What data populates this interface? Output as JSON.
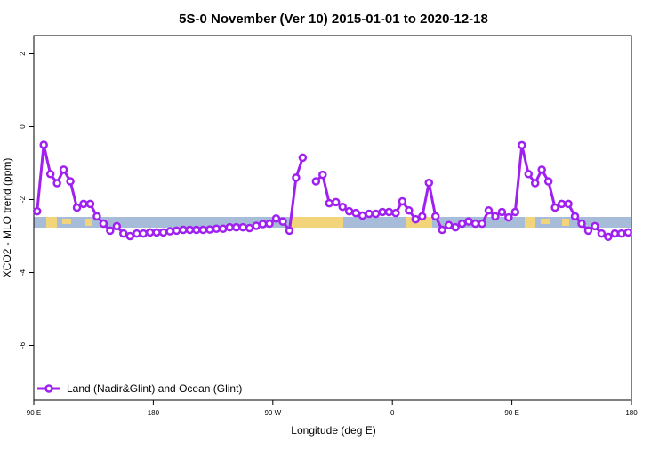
{
  "chart_data": {
    "type": "line",
    "title": "5S-0 November (Ver 10)   2015-01-01 to 2020-12-18",
    "x_label": "Longitude (deg E)",
    "y_label": "XCO2 - MLO trend (ppm)",
    "xlim": [
      90,
      540
    ],
    "ylim": [
      -7.5,
      2.5
    ],
    "xticks": [
      {
        "value": 90,
        "label": "90 E"
      },
      180,
      {
        "value": 270,
        "label": "90 W"
      },
      {
        "value": 360,
        "label": "0"
      },
      {
        "value": 450,
        "label": "90 E"
      },
      {
        "value": 540,
        "label": "180"
      }
    ],
    "yticks": [
      -6,
      -4,
      -2,
      0,
      2
    ],
    "legend": "bottom-left",
    "x": [
      92.5,
      97.5,
      102.5,
      107.5,
      112.5,
      117.5,
      122.5,
      127.5,
      132.5,
      137.5,
      142.5,
      147.5,
      152.5,
      157.5,
      162.5,
      167.5,
      172.5,
      177.5,
      182.5,
      187.5,
      192.5,
      197.5,
      202.5,
      207.5,
      212.5,
      217.5,
      222.5,
      227.5,
      232.5,
      237.5,
      242.5,
      247.5,
      252.5,
      257.5,
      262.5,
      267.5,
      272.5,
      277.5,
      282.5,
      287.5,
      292.5,
      297.5,
      302.5,
      307.5,
      312.5,
      317.5,
      322.5,
      327.5,
      332.5,
      337.5,
      342.5,
      347.5,
      352.5,
      357.5,
      362.5,
      367.5,
      372.5,
      377.5,
      382.5,
      387.5,
      392.5,
      397.5,
      402.5,
      407.5,
      412.5,
      417.5,
      422.5,
      427.5,
      432.5,
      437.5,
      442.5,
      447.5,
      452.5,
      457.5,
      462.5,
      467.5,
      472.5,
      477.5,
      482.5,
      487.5,
      492.5,
      497.5,
      502.5,
      507.5,
      512.5,
      517.5,
      522.5,
      527.5,
      532.5,
      537.5
    ],
    "series": [
      {
        "name": "Land (Nadir&Glint) and Ocean (Glint)",
        "color": "#a020f0",
        "values": [
          -2.32,
          -0.5,
          -1.3,
          -1.55,
          -1.18,
          -1.5,
          -2.22,
          -2.12,
          -2.12,
          -2.46,
          -2.66,
          -2.85,
          -2.73,
          -2.93,
          -3.0,
          -2.93,
          -2.93,
          -2.9,
          -2.9,
          -2.9,
          -2.87,
          -2.85,
          -2.83,
          -2.83,
          -2.83,
          -2.83,
          -2.82,
          -2.8,
          -2.8,
          -2.76,
          -2.76,
          -2.76,
          -2.78,
          -2.72,
          -2.67,
          -2.66,
          -2.52,
          -2.6,
          -2.85,
          -1.4,
          -0.85,
          null,
          -1.5,
          -1.32,
          -2.1,
          -2.07,
          -2.2,
          -2.32,
          -2.37,
          -2.44,
          -2.39,
          -2.39,
          -2.34,
          -2.34,
          -2.37,
          -2.05,
          -2.3,
          -2.54,
          -2.46,
          -1.54,
          -2.46,
          -2.83,
          -2.7,
          -2.76,
          -2.66,
          -2.6,
          -2.66,
          -2.66,
          -2.3,
          -2.46,
          -2.34,
          -2.49,
          -2.34,
          -0.51,
          -1.3,
          -1.55,
          -1.18,
          -1.5,
          -2.22,
          -2.12,
          -2.12,
          -2.46,
          -2.66,
          -2.85,
          -2.73,
          -2.93,
          -3.02,
          -2.93,
          -2.93,
          -2.9
        ]
      }
    ]
  }
}
